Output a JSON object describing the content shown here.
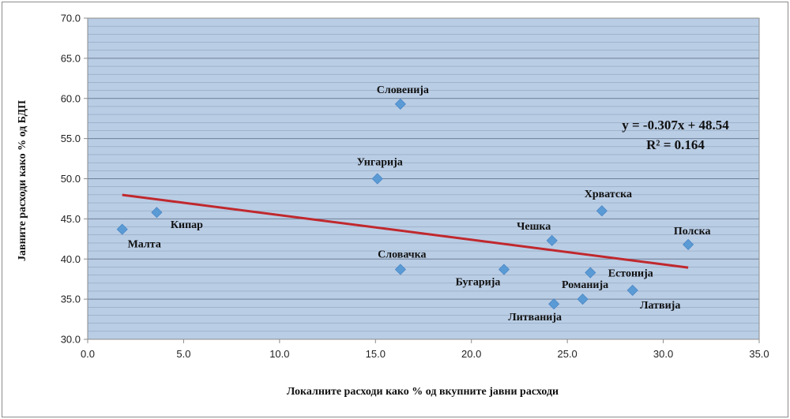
{
  "chart_data": {
    "type": "scatter",
    "xlabel": "Локалните расходи како % од вкупните јавни расходи",
    "ylabel": "Јавните расходи како % од БДП",
    "xlim": [
      0,
      35
    ],
    "ylim": [
      30,
      70
    ],
    "x_ticks": [
      "0.0",
      "5.0",
      "10.0",
      "15.0",
      "20.0",
      "25.0",
      "30.0",
      "35.0"
    ],
    "y_ticks": [
      "30.0",
      "35.0",
      "40.0",
      "45.0",
      "50.0",
      "55.0",
      "60.0",
      "65.0",
      "70.0"
    ],
    "grid": true,
    "points": [
      {
        "label": "Малта",
        "x": 1.8,
        "y": 43.7
      },
      {
        "label": "Кипар",
        "x": 3.6,
        "y": 45.8
      },
      {
        "label": "Унгарија",
        "x": 15.1,
        "y": 50.0
      },
      {
        "label": "Словенија",
        "x": 16.3,
        "y": 59.3
      },
      {
        "label": "Словачка",
        "x": 16.3,
        "y": 38.7
      },
      {
        "label": "Бугарија",
        "x": 21.7,
        "y": 38.7
      },
      {
        "label": "Чешка",
        "x": 24.2,
        "y": 42.3
      },
      {
        "label": "Литванија",
        "x": 24.3,
        "y": 34.4
      },
      {
        "label": "Романија",
        "x": 25.8,
        "y": 35.0
      },
      {
        "label": "Естонија",
        "x": 26.2,
        "y": 38.3
      },
      {
        "label": "Хрватска",
        "x": 26.8,
        "y": 46.0
      },
      {
        "label": "Латвија",
        "x": 28.4,
        "y": 36.1
      },
      {
        "label": "Полска",
        "x": 31.3,
        "y": 41.8
      }
    ],
    "trendline": {
      "slope": -0.307,
      "intercept": 48.54,
      "x_range": [
        1.8,
        31.3
      ],
      "equation": "y = -0.307x + 48.54",
      "r_squared": "R² = 0.164"
    },
    "colors": {
      "plot_background": "#b9cde5",
      "gridline": "#8496b0",
      "marker": "#5b9bd5",
      "trendline": "#c0282d"
    }
  }
}
